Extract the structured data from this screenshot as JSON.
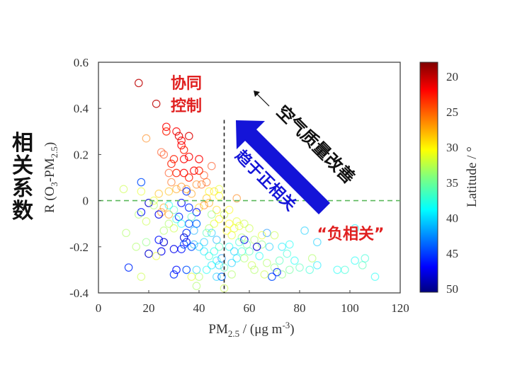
{
  "chart_data": {
    "type": "scatter",
    "xlabel": "PM2.5 / (μg m-3)",
    "ylabel": "R (O3-PM2.5)",
    "xlim": [
      0,
      120
    ],
    "ylim": [
      -0.4,
      0.6
    ],
    "x_ticks": [
      "0",
      "20",
      "40",
      "60",
      "80",
      "100",
      "120"
    ],
    "y_ticks": [
      "-0.4",
      "-0.2",
      "0",
      "0.2",
      "0.4",
      "0.6"
    ],
    "grid": false,
    "reference_lines": {
      "vertical_x": 50,
      "horizontal_y": 0
    },
    "colorbar": {
      "label": "Latitude / °",
      "colormap": "jet (reversed: red = low latitude, blue = high latitude)",
      "range": [
        18,
        50.5
      ],
      "ticks": [
        "20",
        "25",
        "30",
        "35",
        "40",
        "45",
        "50"
      ]
    },
    "point_fields": [
      "x_pm25",
      "y_R",
      "latitude"
    ],
    "points": [
      [
        16,
        0.51,
        20
      ],
      [
        23,
        0.42,
        20
      ],
      [
        27,
        0.32,
        22
      ],
      [
        27,
        0.3,
        23
      ],
      [
        31,
        0.3,
        22
      ],
      [
        32,
        0.28,
        21
      ],
      [
        33,
        0.26,
        22
      ],
      [
        33,
        0.24,
        22
      ],
      [
        34,
        0.22,
        23
      ],
      [
        36,
        0.28,
        21
      ],
      [
        19,
        0.27,
        26
      ],
      [
        25,
        0.21,
        24
      ],
      [
        26,
        0.2,
        24
      ],
      [
        30,
        0.18,
        23
      ],
      [
        34,
        0.18,
        22
      ],
      [
        36,
        0.19,
        22
      ],
      [
        40,
        0.18,
        22
      ],
      [
        45,
        0.15,
        24
      ],
      [
        29,
        0.16,
        23
      ],
      [
        28,
        0.12,
        24
      ],
      [
        31,
        0.12,
        23
      ],
      [
        34,
        0.12,
        22
      ],
      [
        36,
        0.1,
        23
      ],
      [
        38,
        0.13,
        22
      ],
      [
        40,
        0.13,
        23
      ],
      [
        42,
        0.11,
        24
      ],
      [
        43,
        0.08,
        25
      ],
      [
        39,
        0.07,
        26
      ],
      [
        41,
        0.07,
        25
      ],
      [
        29,
        0.08,
        25
      ],
      [
        31,
        0.05,
        27
      ],
      [
        33,
        0.06,
        26
      ],
      [
        35,
        0.05,
        26
      ],
      [
        37,
        0.03,
        27
      ],
      [
        28,
        0.04,
        28
      ],
      [
        24,
        0.03,
        28
      ],
      [
        46,
        0.04,
        29
      ],
      [
        48,
        0.02,
        30
      ],
      [
        43,
        0.01,
        28
      ],
      [
        44,
        -0.01,
        27
      ],
      [
        42,
        -0.02,
        26
      ],
      [
        40,
        -0.03,
        29
      ],
      [
        26,
        -0.03,
        27
      ],
      [
        25,
        -0.05,
        26
      ],
      [
        28,
        -0.06,
        27
      ],
      [
        17,
        0.08,
        44
      ],
      [
        20,
        -0.01,
        48
      ],
      [
        17,
        -0.05,
        46
      ],
      [
        24,
        -0.06,
        47
      ],
      [
        35,
        0.04,
        45
      ],
      [
        33,
        -0.01,
        46
      ],
      [
        36,
        -0.03,
        45
      ],
      [
        39,
        -0.05,
        46
      ],
      [
        32,
        -0.07,
        45
      ],
      [
        36,
        -0.1,
        44
      ],
      [
        39,
        -0.1,
        43
      ],
      [
        38,
        -0.13,
        41
      ],
      [
        35,
        -0.14,
        45
      ],
      [
        34,
        -0.16,
        48
      ],
      [
        35,
        -0.18,
        46
      ],
      [
        30,
        -0.21,
        47
      ],
      [
        33,
        -0.21,
        46
      ],
      [
        34,
        -0.19,
        44
      ],
      [
        37,
        -0.2,
        44
      ],
      [
        24,
        -0.17,
        46
      ],
      [
        26,
        -0.18,
        48
      ],
      [
        25,
        -0.22,
        47
      ],
      [
        20,
        -0.23,
        48
      ],
      [
        12,
        -0.29,
        45
      ],
      [
        30,
        -0.32,
        45
      ],
      [
        31,
        -0.3,
        46
      ],
      [
        35,
        -0.3,
        44
      ],
      [
        39,
        -0.3,
        40
      ],
      [
        43,
        -0.3,
        38
      ],
      [
        45,
        -0.28,
        39
      ],
      [
        48,
        -0.28,
        40
      ],
      [
        49,
        -0.25,
        42
      ],
      [
        46,
        -0.22,
        38
      ],
      [
        44,
        -0.24,
        37
      ],
      [
        42,
        -0.22,
        39
      ],
      [
        40,
        -0.2,
        40
      ],
      [
        38,
        -0.19,
        41
      ],
      [
        49,
        -0.33,
        43
      ],
      [
        47,
        -0.33,
        40
      ],
      [
        42,
        -0.18,
        40
      ],
      [
        47,
        -0.17,
        41
      ],
      [
        45,
        -0.14,
        40
      ],
      [
        10,
        0.05,
        32
      ],
      [
        17,
        0.04,
        31
      ],
      [
        22,
        0.0,
        31
      ],
      [
        16,
        -0.06,
        33
      ],
      [
        19,
        -0.09,
        32
      ],
      [
        11,
        -0.14,
        33
      ],
      [
        15,
        -0.2,
        33
      ],
      [
        19,
        -0.18,
        34
      ],
      [
        17,
        -0.33,
        32
      ],
      [
        23,
        -0.24,
        31
      ],
      [
        39,
        -0.37,
        33
      ],
      [
        50,
        -0.38,
        32
      ],
      [
        53,
        -0.15,
        31
      ],
      [
        51,
        -0.13,
        30
      ],
      [
        54,
        -0.12,
        31
      ],
      [
        52,
        -0.1,
        30
      ],
      [
        56,
        -0.11,
        31
      ],
      [
        58,
        -0.1,
        32
      ],
      [
        55,
        -0.09,
        31
      ],
      [
        62,
        -0.17,
        33
      ],
      [
        65,
        -0.19,
        34
      ],
      [
        60,
        -0.22,
        36
      ],
      [
        64,
        -0.24,
        38
      ],
      [
        57,
        -0.22,
        37
      ],
      [
        55,
        -0.25,
        39
      ],
      [
        53,
        -0.27,
        40
      ],
      [
        58,
        -0.25,
        33
      ],
      [
        61,
        -0.28,
        32
      ],
      [
        67,
        -0.27,
        33
      ],
      [
        70,
        -0.29,
        34
      ],
      [
        72,
        -0.26,
        36
      ],
      [
        75,
        -0.23,
        37
      ],
      [
        78,
        -0.26,
        38
      ],
      [
        80,
        -0.29,
        36
      ],
      [
        76,
        -0.3,
        35
      ],
      [
        73,
        -0.32,
        34
      ],
      [
        69,
        -0.33,
        44
      ],
      [
        71,
        -0.31,
        45
      ],
      [
        84,
        -0.3,
        37
      ],
      [
        87,
        -0.28,
        39
      ],
      [
        95,
        -0.3,
        38
      ],
      [
        98,
        -0.3,
        37
      ],
      [
        102,
        -0.26,
        38
      ],
      [
        105,
        -0.28,
        36
      ],
      [
        106,
        -0.25,
        37
      ],
      [
        110,
        -0.33,
        38
      ],
      [
        102,
        -0.12,
        39
      ],
      [
        82,
        -0.13,
        40
      ],
      [
        67,
        -0.14,
        42
      ],
      [
        87,
        -0.18,
        40
      ],
      [
        63,
        -0.2,
        48
      ],
      [
        58,
        -0.17,
        47
      ],
      [
        68,
        -0.2,
        40
      ],
      [
        73,
        -0.2,
        39
      ],
      [
        76,
        -0.19,
        38
      ],
      [
        85,
        -0.25,
        33
      ],
      [
        62,
        -0.3,
        33
      ],
      [
        66,
        -0.32,
        32
      ],
      [
        55,
        0.01,
        26
      ],
      [
        65,
        -0.15,
        31
      ],
      [
        70,
        -0.15,
        32
      ],
      [
        48,
        -0.08,
        30
      ],
      [
        46,
        -0.1,
        31
      ],
      [
        44,
        -0.12,
        33
      ],
      [
        43,
        -0.14,
        36
      ],
      [
        47,
        -0.04,
        29
      ],
      [
        50,
        -0.06,
        32
      ],
      [
        52,
        -0.04,
        30
      ],
      [
        57,
        -0.16,
        33
      ],
      [
        60,
        -0.12,
        32
      ],
      [
        28,
        -0.1,
        33
      ],
      [
        30,
        -0.12,
        32
      ],
      [
        26,
        -0.13,
        33
      ],
      [
        22,
        -0.02,
        33
      ],
      [
        30,
        -0.04,
        36
      ],
      [
        28,
        -0.02,
        38
      ],
      [
        31,
        -0.08,
        37
      ],
      [
        33,
        -0.1,
        38
      ],
      [
        37,
        -0.07,
        36
      ],
      [
        45,
        -0.06,
        34
      ],
      [
        48,
        -0.2,
        36
      ],
      [
        52,
        -0.2,
        38
      ],
      [
        54,
        -0.22,
        40
      ],
      [
        56,
        -0.18,
        37
      ],
      [
        59,
        -0.19,
        35
      ],
      [
        47,
        -0.26,
        38
      ],
      [
        50,
        -0.29,
        36
      ],
      [
        53,
        -0.32,
        33
      ],
      [
        40,
        -0.33,
        33
      ],
      [
        37,
        -0.33,
        31
      ],
      [
        44,
        0.04,
        30
      ],
      [
        48,
        0.05,
        31
      ]
    ],
    "annotations": {
      "left_label": "相关系数",
      "synergy": [
        "协同",
        "控制"
      ],
      "air_quality": "空气质量改善",
      "positive_trend": "趋于正相关",
      "negative": "“负相关”"
    }
  },
  "colors": {
    "synergy_text": "#e02020",
    "negative_text": "#e02020",
    "trend_arrow": "#1010d8",
    "trend_text": "#1010d8",
    "zero_line": "#5ab85a",
    "vertical_line": "#222222"
  }
}
